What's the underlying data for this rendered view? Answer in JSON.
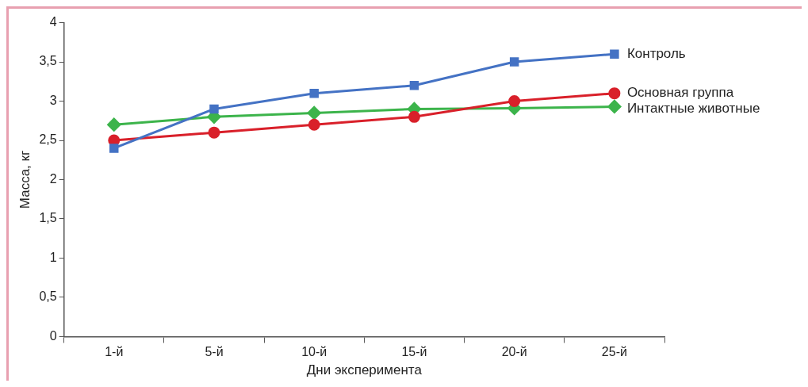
{
  "chart_data": {
    "type": "line",
    "xlabel": "Дни эксперимента",
    "ylabel": "Масса, кг",
    "categories": [
      "1-й",
      "5-й",
      "10-й",
      "15-й",
      "20-й",
      "25-й"
    ],
    "ylim": [
      0,
      4
    ],
    "yticks": [
      0,
      {
        "value": 0.5,
        "label": "0,5"
      },
      1,
      {
        "value": 1.5,
        "label": "1,5"
      },
      2,
      {
        "value": 2.5,
        "label": "2,5"
      },
      3,
      {
        "value": 3.5,
        "label": "3,5"
      },
      4
    ],
    "grid": false,
    "legend": false,
    "line_style": "solid",
    "series": [
      {
        "name": "Контроль",
        "color": "#4472c4",
        "marker": "square",
        "values": [
          2.4,
          2.9,
          3.1,
          3.2,
          3.5,
          3.6
        ]
      },
      {
        "name": "Основная группа",
        "color": "#d9202a",
        "marker": "circle",
        "values": [
          2.5,
          2.6,
          2.7,
          2.8,
          3.0,
          3.1
        ]
      },
      {
        "name": "Интактные животные",
        "color": "#3cb44b",
        "marker": "diamond",
        "values": [
          2.7,
          2.8,
          2.85,
          2.9,
          2.91,
          2.93
        ]
      }
    ]
  }
}
